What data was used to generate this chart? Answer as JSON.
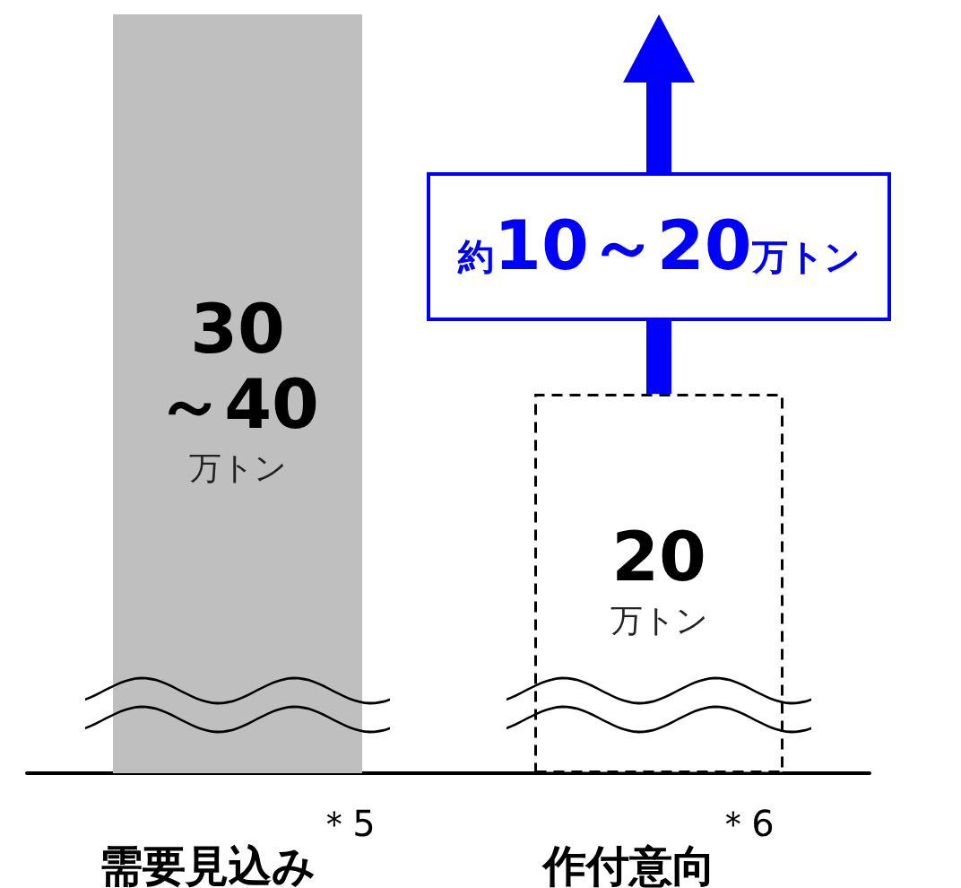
{
  "chart_data": {
    "type": "bar",
    "categories": [
      "需要見込み$^{＊5}$",
      "作付意向$^{＊6}$"
    ],
    "values": [
      40,
      20
    ],
    "colors": [
      "#bfbfbf",
      "#ffffff"
    ],
    "value_labels": [
      "30\n～40\n万トン",
      "20\n万トン"
    ],
    "annotations": [
      "約10～20万トン"
    ],
    "grid": false
  }
}
